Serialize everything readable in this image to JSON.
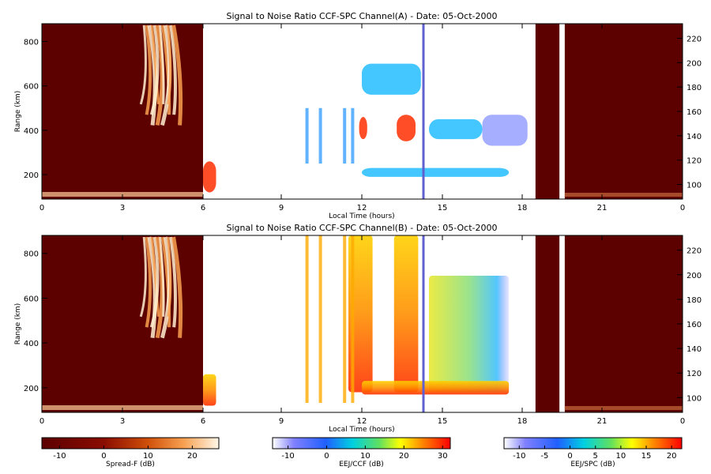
{
  "panels": [
    {
      "title": "Signal to Noise Ratio CCF-SPC Channel(A) - Date: 05-Oct-2000",
      "ylabel": "Range (km)",
      "xlabel": "Local Time (hours)",
      "x_ticks": [
        "0",
        "3",
        "6",
        "9",
        "12",
        "15",
        "18",
        "21",
        "0"
      ],
      "y_ticks": [
        "200",
        "400",
        "600",
        "800"
      ],
      "y2_ticks": [
        "100",
        "120",
        "140",
        "160",
        "180",
        "200",
        "220"
      ]
    },
    {
      "title": "Signal to Noise Ratio CCF-SPC Channel(B) - Date: 05-Oct-2000",
      "ylabel": "Range (km)",
      "xlabel": "Local Time (hours)",
      "x_ticks": [
        "0",
        "3",
        "6",
        "9",
        "12",
        "15",
        "18",
        "21",
        "0"
      ],
      "y_ticks": [
        "200",
        "400",
        "600",
        "800"
      ],
      "y2_ticks": [
        "100",
        "120",
        "140",
        "160",
        "180",
        "200",
        "220"
      ]
    }
  ],
  "colorbars": [
    {
      "label": "Spread-F (dB)",
      "ticks": [
        "-10",
        "0",
        "10",
        "20"
      ]
    },
    {
      "label": "EEJ/CCF (dB)",
      "ticks": [
        "-10",
        "0",
        "10",
        "20",
        "30"
      ]
    },
    {
      "label": "EEJ/SPC (dB)",
      "ticks": [
        "-10",
        "-5",
        "0",
        "5",
        "10",
        "15",
        "20"
      ]
    }
  ],
  "chart_data": [
    {
      "type": "heatmap",
      "title": "Signal to Noise Ratio CCF-SPC Channel(A) - Date: 05-Oct-2000",
      "xlabel": "Local Time (hours)",
      "ylabel": "Range (km)",
      "xlim": [
        0,
        24
      ],
      "ylim": [
        90,
        880
      ],
      "y2lim": [
        88,
        232
      ],
      "segments": [
        {
          "name": "Spread-F",
          "x_range": [
            0,
            6
          ],
          "colorbar": "Spread-F (dB)"
        },
        {
          "name": "EEJ/CCF",
          "x_range": [
            6,
            18.5
          ],
          "colorbar": "EEJ/CCF (dB)"
        },
        {
          "name": "Spread-F",
          "x_range": [
            18.5,
            24
          ],
          "colorbar": "Spread-F (dB)"
        }
      ],
      "features": [
        {
          "x": [
            11.9,
            12.2
          ],
          "y": [
            360,
            460
          ],
          "level": "high"
        },
        {
          "x": [
            13.3,
            14.0
          ],
          "y": [
            350,
            470
          ],
          "level": "high"
        },
        {
          "x": [
            14.5,
            16.5
          ],
          "y": [
            360,
            450
          ],
          "level": "medium"
        },
        {
          "x": [
            16.5,
            18.2
          ],
          "y": [
            330,
            470
          ],
          "level": "low"
        },
        {
          "x": [
            12.0,
            14.2
          ],
          "y": [
            560,
            700
          ],
          "level": "medium"
        },
        {
          "x": [
            12.0,
            17.5
          ],
          "y": [
            190,
            230
          ],
          "level": "medium"
        },
        {
          "x": [
            6.0,
            6.5
          ],
          "y": [
            120,
            260
          ],
          "level": "high"
        }
      ]
    },
    {
      "type": "heatmap",
      "title": "Signal to Noise Ratio CCF-SPC Channel(B) - Date: 05-Oct-2000",
      "xlabel": "Local Time (hours)",
      "ylabel": "Range (km)",
      "xlim": [
        0,
        24
      ],
      "ylim": [
        90,
        880
      ],
      "y2lim": [
        88,
        232
      ],
      "segments": [
        {
          "name": "Spread-F",
          "x_range": [
            0,
            6
          ],
          "colorbar": "Spread-F (dB)"
        },
        {
          "name": "EEJ/SPC",
          "x_range": [
            6,
            18.5
          ],
          "colorbar": "EEJ/SPC (dB)"
        },
        {
          "name": "Spread-F",
          "x_range": [
            18.5,
            24
          ],
          "colorbar": "Spread-F (dB)"
        }
      ],
      "features": [
        {
          "x": [
            11.5,
            12.4
          ],
          "y": [
            180,
            880
          ],
          "level": "high"
        },
        {
          "x": [
            13.2,
            14.1
          ],
          "y": [
            180,
            880
          ],
          "level": "high"
        },
        {
          "x": [
            14.5,
            17.5
          ],
          "y": [
            180,
            700
          ],
          "level": "medium"
        },
        {
          "x": [
            12.0,
            17.5
          ],
          "y": [
            170,
            230
          ],
          "level": "high"
        },
        {
          "x": [
            6.0,
            6.5
          ],
          "y": [
            120,
            260
          ],
          "level": "high"
        }
      ]
    }
  ]
}
